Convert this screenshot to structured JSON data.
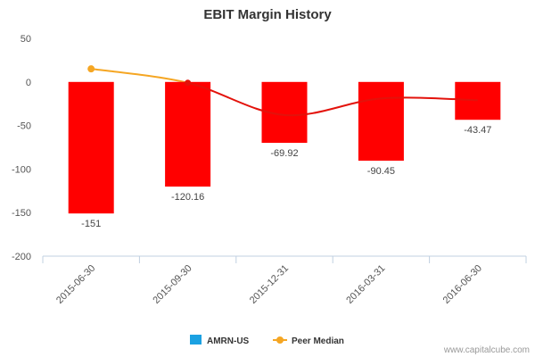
{
  "chart_data": {
    "type": "bar",
    "title": "EBIT Margin History",
    "categories": [
      "2015-06-30",
      "2015-09-30",
      "2015-12-31",
      "2016-03-31",
      "2016-06-30"
    ],
    "series": [
      {
        "name": "AMRN-US",
        "kind": "bar",
        "values": [
          -151,
          -120.16,
          -69.92,
          -90.45,
          -43.47
        ],
        "labels": [
          "-151",
          "-120.16",
          "-69.92",
          "-90.45",
          "-43.47"
        ],
        "color": "#ff0000",
        "legend_color": "#1ba1e2"
      },
      {
        "name": "Peer Median",
        "kind": "line",
        "values": [
          15,
          -1,
          -38,
          -19,
          -21
        ],
        "color_above_zero": "#f5a623",
        "color_below_zero": "#e3120b"
      }
    ],
    "ylim": [
      -200,
      50
    ],
    "yticks": [
      50,
      0,
      -50,
      -100,
      -150,
      -200
    ],
    "xlabel": "",
    "ylabel": "",
    "grid": false,
    "legend_position": "bottom"
  },
  "credit": "www.capitalcube.com"
}
